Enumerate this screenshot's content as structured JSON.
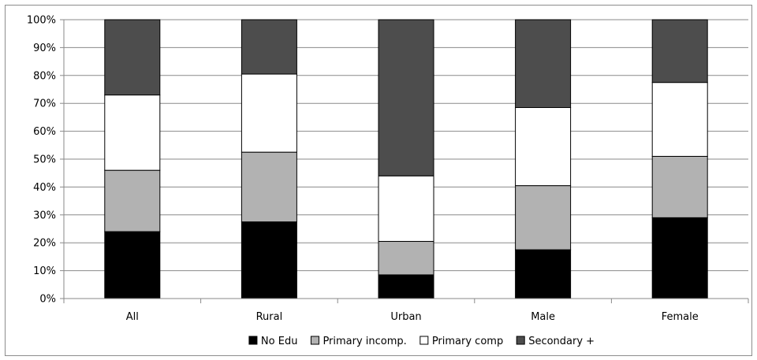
{
  "chart_data": {
    "type": "bar",
    "stacked": true,
    "percent": true,
    "categories": [
      "All",
      "Rural",
      "Urban",
      "Male",
      "Female"
    ],
    "series": [
      {
        "name": "No Edu",
        "color": "#000000",
        "values": [
          24,
          27.5,
          8.5,
          17.5,
          29
        ]
      },
      {
        "name": "Primary incomp.",
        "color": "#b2b2b2",
        "values": [
          22,
          25,
          12,
          23,
          22
        ]
      },
      {
        "name": "Primary comp",
        "color": "#ffffff",
        "values": [
          27,
          28,
          23.5,
          28,
          26.5
        ]
      },
      {
        "name": "Secondary +",
        "color": "#4d4d4d",
        "values": [
          27,
          19.5,
          56,
          31.5,
          22.5
        ]
      }
    ],
    "ylim": [
      0,
      100
    ],
    "y_ticks": [
      "0%",
      "10%",
      "20%",
      "30%",
      "40%",
      "50%",
      "60%",
      "70%",
      "80%",
      "90%",
      "100%"
    ],
    "grid": true,
    "legend_position": "bottom"
  }
}
